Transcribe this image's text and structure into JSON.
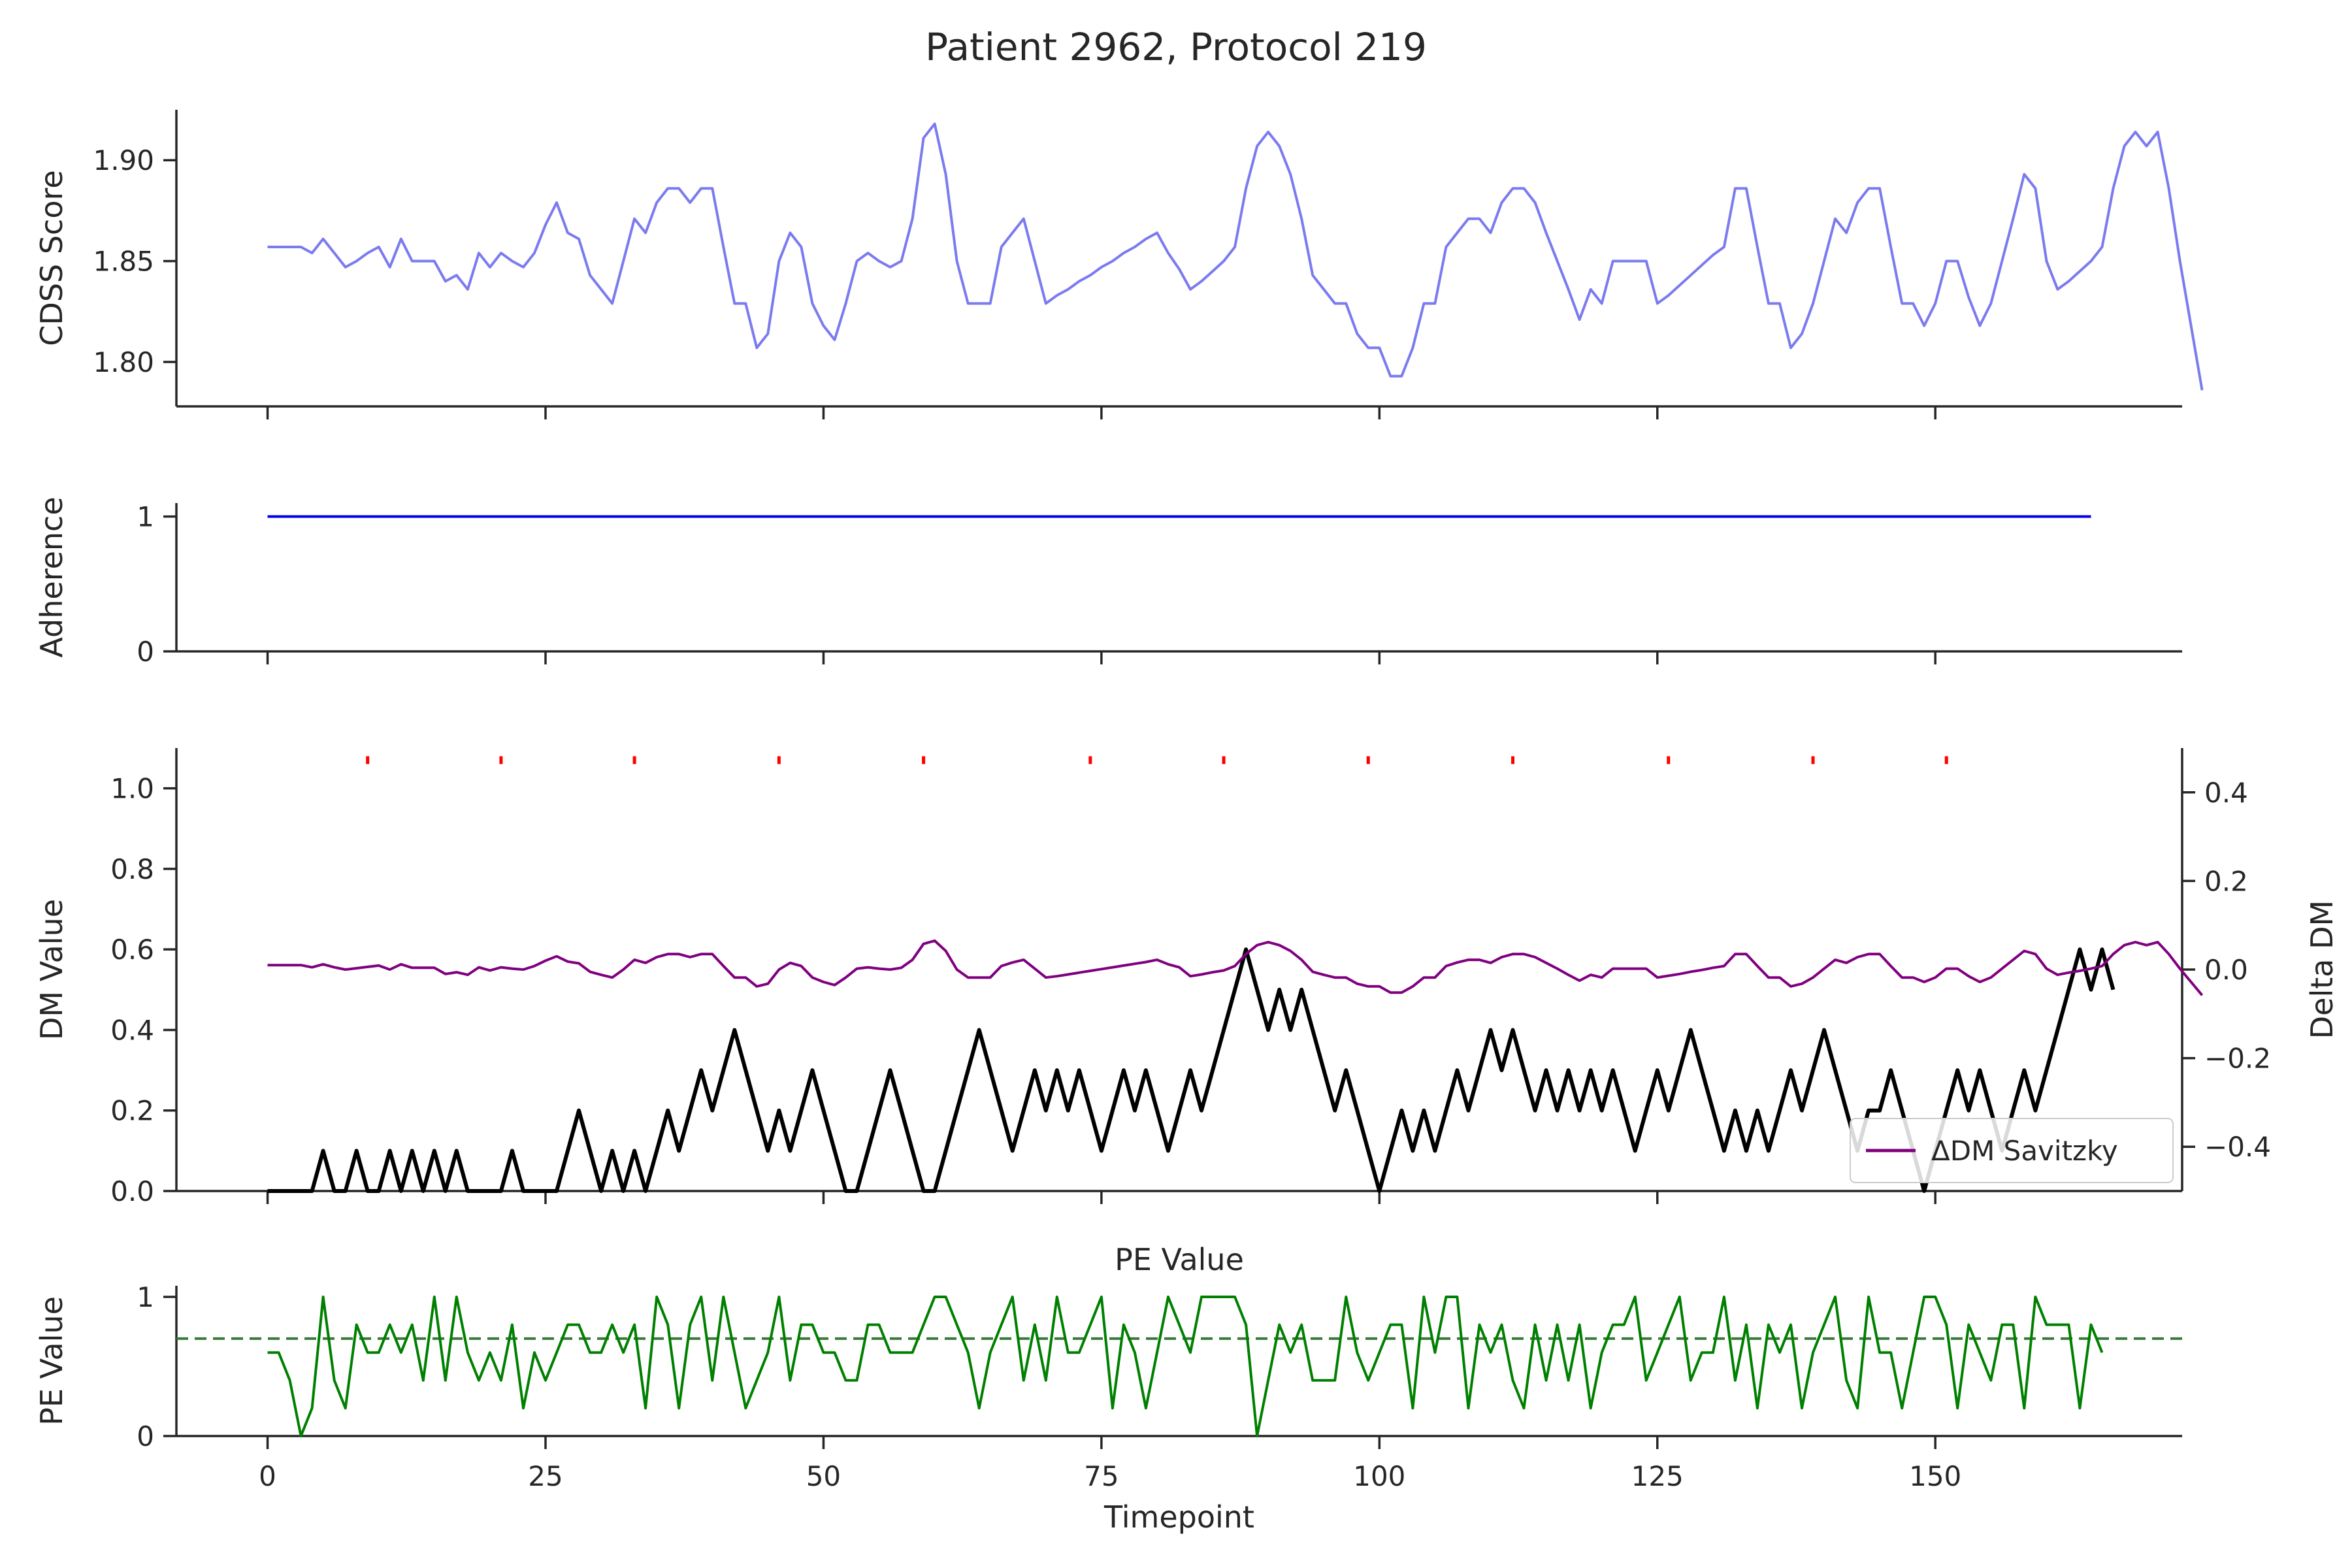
{
  "figure": {
    "title": "Patient 2962, Protocol 219"
  },
  "chart_data": [
    {
      "type": "line",
      "ylabel": "CDSS Score",
      "xlim": [
        -8.2,
        172.2
      ],
      "ylim": [
        1.778,
        1.925
      ],
      "yticks": [
        1.8,
        1.85,
        1.9
      ],
      "ytick_labels": [
        "1.80",
        "1.85",
        "1.90"
      ],
      "x_tick_labels_shown": false,
      "grid": false,
      "series": [
        {
          "color": "#7b7bf0",
          "values": [
            1.857,
            1.857,
            1.857,
            1.857,
            1.854,
            1.861,
            1.854,
            1.847,
            1.85,
            1.854,
            1.857,
            1.847,
            1.861,
            1.85,
            1.85,
            1.85,
            1.84,
            1.843,
            1.836,
            1.854,
            1.847,
            1.854,
            1.85,
            1.847,
            1.854,
            1.868,
            1.879,
            1.864,
            1.861,
            1.843,
            1.836,
            1.829,
            1.85,
            1.871,
            1.864,
            1.879,
            1.886,
            1.886,
            1.879,
            1.886,
            1.886,
            1.857,
            1.829,
            1.829,
            1.807,
            1.814,
            1.85,
            1.864,
            1.857,
            1.829,
            1.818,
            1.811,
            1.829,
            1.85,
            1.854,
            1.85,
            1.847,
            1.85,
            1.871,
            1.911,
            1.918,
            1.893,
            1.85,
            1.829,
            1.829,
            1.829,
            1.857,
            1.864,
            1.871,
            1.85,
            1.829,
            1.833,
            1.836,
            1.84,
            1.843,
            1.847,
            1.85,
            1.854,
            1.857,
            1.861,
            1.864,
            1.854,
            1.846,
            1.836,
            1.84,
            1.845,
            1.85,
            1.857,
            1.886,
            1.907,
            1.914,
            1.907,
            1.893,
            1.871,
            1.843,
            1.836,
            1.829,
            1.829,
            1.814,
            1.807,
            1.807,
            1.793,
            1.793,
            1.807,
            1.829,
            1.829,
            1.857,
            1.864,
            1.871,
            1.871,
            1.864,
            1.879,
            1.886,
            1.886,
            1.879,
            1.864,
            1.85,
            1.836,
            1.821,
            1.836,
            1.829,
            1.85,
            1.85,
            1.85,
            1.85,
            1.829,
            1.833,
            1.838,
            1.843,
            1.848,
            1.853,
            1.857,
            1.886,
            1.886,
            1.857,
            1.829,
            1.829,
            1.807,
            1.814,
            1.829,
            1.85,
            1.871,
            1.864,
            1.879,
            1.886,
            1.886,
            1.857,
            1.829,
            1.829,
            1.818,
            1.829,
            1.85,
            1.85,
            1.832,
            1.818,
            1.829,
            1.85,
            1.871,
            1.893,
            1.886,
            1.85,
            1.836,
            1.84,
            1.845,
            1.85,
            1.857,
            1.886,
            1.907,
            1.914,
            1.907,
            1.914,
            1.886,
            1.85,
            1.818,
            1.786
          ]
        }
      ]
    },
    {
      "type": "line",
      "ylabel": "Adherence",
      "xlim": [
        -8.2,
        172.2
      ],
      "ylim": [
        0,
        1.1
      ],
      "yticks": [
        0,
        1
      ],
      "ytick_labels": [
        "0",
        "1"
      ],
      "x_tick_labels_shown": false,
      "grid": false,
      "series": [
        {
          "color": "#0000ee",
          "x": [
            0,
            164
          ],
          "values": [
            1,
            1
          ]
        }
      ]
    },
    {
      "type": "line",
      "ylabel": "DM Value",
      "ylabel_right": "Delta DM",
      "xlim": [
        -8.2,
        172.2
      ],
      "ylim": [
        0,
        1.1
      ],
      "ylim_right": [
        -0.5,
        0.5
      ],
      "yticks": [
        0.0,
        0.2,
        0.4,
        0.6,
        0.8,
        1.0
      ],
      "ytick_labels": [
        "0.0",
        "0.2",
        "0.4",
        "0.6",
        "0.8",
        "1.0"
      ],
      "yticks_right": [
        -0.4,
        -0.2,
        0.0,
        0.2,
        0.4
      ],
      "ytick_labels_right": [
        "−0.4",
        "−0.2",
        "0.0",
        "0.2",
        "0.4"
      ],
      "x_tick_labels_shown": false,
      "grid": false,
      "legend": {
        "location": "lower-right",
        "entries": [
          {
            "label": "ΔDM Savitzky",
            "color": "#800080"
          }
        ]
      },
      "event_markers": {
        "color": "#ff0000",
        "x": [
          9,
          21,
          33,
          46,
          59,
          74,
          86,
          99,
          112,
          126,
          139,
          151
        ],
        "y": 1.07
      },
      "series": [
        {
          "axis": "left",
          "color": "#000000",
          "values": [
            0,
            0,
            0,
            0,
            0,
            0.1,
            0,
            0,
            0.1,
            0,
            0,
            0.1,
            0,
            0.1,
            0,
            0.1,
            0,
            0.1,
            0,
            0,
            0,
            0,
            0.1,
            0,
            0,
            0,
            0,
            0.1,
            0.2,
            0.1,
            0,
            0.1,
            0,
            0.1,
            0,
            0.1,
            0.2,
            0.1,
            0.2,
            0.3,
            0.2,
            0.3,
            0.4,
            0.3,
            0.2,
            0.1,
            0.2,
            0.1,
            0.2,
            0.3,
            0.2,
            0.1,
            0,
            0,
            0.1,
            0.2,
            0.3,
            0.2,
            0.1,
            0,
            0,
            0.1,
            0.2,
            0.3,
            0.4,
            0.3,
            0.2,
            0.1,
            0.2,
            0.3,
            0.2,
            0.3,
            0.2,
            0.3,
            0.2,
            0.1,
            0.2,
            0.3,
            0.2,
            0.3,
            0.2,
            0.1,
            0.2,
            0.3,
            0.2,
            0.3,
            0.4,
            0.5,
            0.6,
            0.5,
            0.4,
            0.5,
            0.4,
            0.5,
            0.4,
            0.3,
            0.2,
            0.3,
            0.2,
            0.1,
            0,
            0.1,
            0.2,
            0.1,
            0.2,
            0.1,
            0.2,
            0.3,
            0.2,
            0.3,
            0.4,
            0.3,
            0.4,
            0.3,
            0.2,
            0.3,
            0.2,
            0.3,
            0.2,
            0.3,
            0.2,
            0.3,
            0.2,
            0.1,
            0.2,
            0.3,
            0.2,
            0.3,
            0.4,
            0.3,
            0.2,
            0.1,
            0.2,
            0.1,
            0.2,
            0.1,
            0.2,
            0.3,
            0.2,
            0.3,
            0.4,
            0.3,
            0.2,
            0.1,
            0.2,
            0.2,
            0.3,
            0.2,
            0.1,
            0,
            0.1,
            0.2,
            0.3,
            0.2,
            0.3,
            0.2,
            0.1,
            0.2,
            0.3,
            0.2,
            0.3,
            0.4,
            0.5,
            0.6,
            0.5,
            0.6,
            0.5
          ]
        },
        {
          "axis": "right",
          "name": "ΔDM Savitzky",
          "color": "#800080",
          "values": [
            0.01,
            0.01,
            0.01,
            0.01,
            0.005,
            0.012,
            0.005,
            0,
            0.003,
            0.006,
            0.009,
            0,
            0.012,
            0.004,
            0.004,
            0.004,
            -0.01,
            -0.006,
            -0.012,
            0.005,
            -0.002,
            0.005,
            0.002,
            0,
            0.008,
            0.02,
            0.03,
            0.018,
            0.014,
            -0.005,
            -0.012,
            -0.018,
            0,
            0.022,
            0.015,
            0.028,
            0.035,
            0.035,
            0.028,
            0.035,
            0.035,
            0.008,
            -0.018,
            -0.018,
            -0.038,
            -0.032,
            0,
            0.015,
            0.008,
            -0.018,
            -0.028,
            -0.035,
            -0.018,
            0.002,
            0.005,
            0.002,
            0,
            0.004,
            0.022,
            0.058,
            0.065,
            0.042,
            0,
            -0.018,
            -0.018,
            -0.018,
            0.008,
            0.016,
            0.022,
            0.002,
            -0.018,
            -0.015,
            -0.011,
            -0.007,
            -0.003,
            0.001,
            0.005,
            0.009,
            0.013,
            0.017,
            0.022,
            0.012,
            0.005,
            -0.015,
            -0.011,
            -0.006,
            -0.002,
            0.008,
            0.035,
            0.055,
            0.062,
            0.055,
            0.042,
            0.022,
            -0.005,
            -0.012,
            -0.018,
            -0.018,
            -0.032,
            -0.038,
            -0.038,
            -0.052,
            -0.052,
            -0.038,
            -0.018,
            -0.018,
            0.008,
            0.016,
            0.022,
            0.022,
            0.015,
            0.028,
            0.035,
            0.035,
            0.028,
            0.015,
            0.002,
            -0.012,
            -0.025,
            -0.012,
            -0.018,
            0.002,
            0.002,
            0.002,
            0.002,
            -0.018,
            -0.014,
            -0.01,
            -0.005,
            -0.001,
            0.004,
            0.008,
            0.035,
            0.035,
            0.008,
            -0.018,
            -0.018,
            -0.038,
            -0.032,
            -0.018,
            0.002,
            0.022,
            0.015,
            0.028,
            0.035,
            0.035,
            0.008,
            -0.018,
            -0.018,
            -0.028,
            -0.018,
            0.002,
            0.002,
            -0.015,
            -0.028,
            -0.018,
            0.002,
            0.022,
            0.042,
            0.035,
            0.002,
            -0.012,
            -0.007,
            -0.003,
            0.002,
            0.008,
            0.035,
            0.055,
            0.062,
            0.055,
            0.062,
            0.035,
            0.002,
            -0.028,
            -0.058
          ]
        }
      ]
    },
    {
      "type": "line",
      "title": "PE Value",
      "ylabel": "PE Value",
      "xlabel": "Timepoint",
      "xlim": [
        -8.2,
        172.2
      ],
      "ylim": [
        0,
        1.08
      ],
      "yticks": [
        0,
        1
      ],
      "ytick_labels": [
        "0",
        "1"
      ],
      "xticks": [
        0,
        25,
        50,
        75,
        100,
        125,
        150
      ],
      "xtick_labels": [
        "0",
        "25",
        "50",
        "75",
        "100",
        "125",
        "150"
      ],
      "grid": false,
      "threshold": {
        "value": 0.7,
        "color": "#3a7a3a",
        "style": "dashed"
      },
      "series": [
        {
          "color": "#008000",
          "values": [
            0.6,
            0.6,
            0.4,
            0,
            0.2,
            1,
            0.4,
            0.2,
            0.8,
            0.6,
            0.6,
            0.8,
            0.6,
            0.8,
            0.4,
            1,
            0.4,
            1,
            0.6,
            0.4,
            0.6,
            0.4,
            0.8,
            0.2,
            0.6,
            0.4,
            0.6,
            0.8,
            0.8,
            0.6,
            0.6,
            0.8,
            0.6,
            0.8,
            0.2,
            1,
            0.8,
            0.2,
            0.8,
            1,
            0.4,
            1,
            0.6,
            0.2,
            0.4,
            0.6,
            1,
            0.4,
            0.8,
            0.8,
            0.6,
            0.6,
            0.4,
            0.4,
            0.8,
            0.8,
            0.6,
            0.6,
            0.6,
            0.8,
            1,
            1,
            0.8,
            0.6,
            0.2,
            0.6,
            0.8,
            1,
            0.4,
            0.8,
            0.4,
            1,
            0.6,
            0.6,
            0.8,
            1,
            0.2,
            0.8,
            0.6,
            0.2,
            0.6,
            1,
            0.8,
            0.6,
            1,
            1,
            1,
            1,
            0.8,
            0,
            0.4,
            0.8,
            0.6,
            0.8,
            0.4,
            0.4,
            0.4,
            1,
            0.6,
            0.4,
            0.6,
            0.8,
            0.8,
            0.2,
            1,
            0.6,
            1,
            1,
            0.2,
            0.8,
            0.6,
            0.8,
            0.4,
            0.2,
            0.8,
            0.4,
            0.8,
            0.4,
            0.8,
            0.2,
            0.6,
            0.8,
            0.8,
            1,
            0.4,
            0.6,
            0.8,
            1,
            0.4,
            0.6,
            0.6,
            1,
            0.4,
            0.8,
            0.2,
            0.8,
            0.6,
            0.8,
            0.2,
            0.6,
            0.8,
            1,
            0.4,
            0.2,
            1,
            0.6,
            0.6,
            0.2,
            0.6,
            1,
            1,
            0.8,
            0.2,
            0.8,
            0.6,
            0.4,
            0.8,
            0.8,
            0.2,
            1,
            0.8,
            0.8,
            0.8,
            0.2,
            0.8,
            0.6
          ]
        }
      ]
    }
  ]
}
